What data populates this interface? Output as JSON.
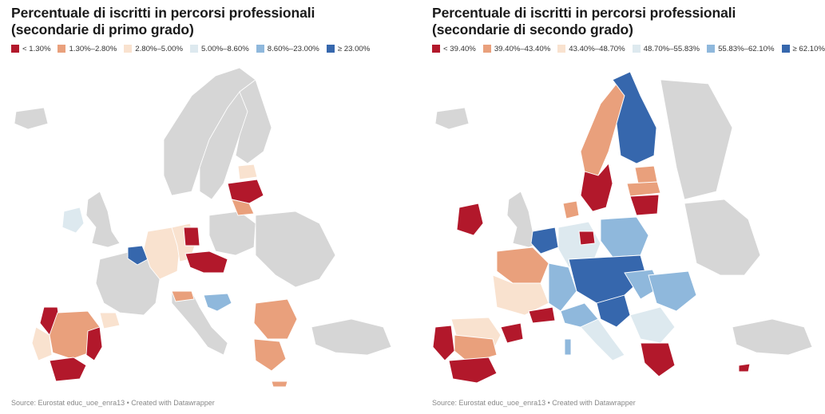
{
  "maps": [
    {
      "title": "Percentuale di iscritti in percorsi professionali (secondarie di primo grado)",
      "legend": [
        {
          "label": "< 1.30%",
          "color": "#b2182b"
        },
        {
          "label": "1.30%–2.80%",
          "color": "#e9a07c"
        },
        {
          "label": "2.80%–5.00%",
          "color": "#f9e2cf"
        },
        {
          "label": "5.00%–8.60%",
          "color": "#dde9ef"
        },
        {
          "label": "8.60%–23.00%",
          "color": "#8fb8dc"
        },
        {
          "label": "≥ 23.00%",
          "color": "#3667ad"
        }
      ],
      "source": "Source: Eurostat educ_uoe_enra13 • Created with Datawrapper"
    },
    {
      "title": "Percentuale di iscritti in percorsi professionali (secondarie di secondo grado)",
      "legend": [
        {
          "label": "< 39.40%",
          "color": "#b2182b"
        },
        {
          "label": "39.40%–43.40%",
          "color": "#e9a07c"
        },
        {
          "label": "43.40%–48.70%",
          "color": "#f9e2cf"
        },
        {
          "label": "48.70%–55.83%",
          "color": "#dde9ef"
        },
        {
          "label": "55.83%–62.10%",
          "color": "#8fb8dc"
        },
        {
          "label": "≥ 62.10%",
          "color": "#3667ad"
        }
      ],
      "source": "Source: Eurostat educ_uoe_enra13 • Created with Datawrapper"
    }
  ]
}
